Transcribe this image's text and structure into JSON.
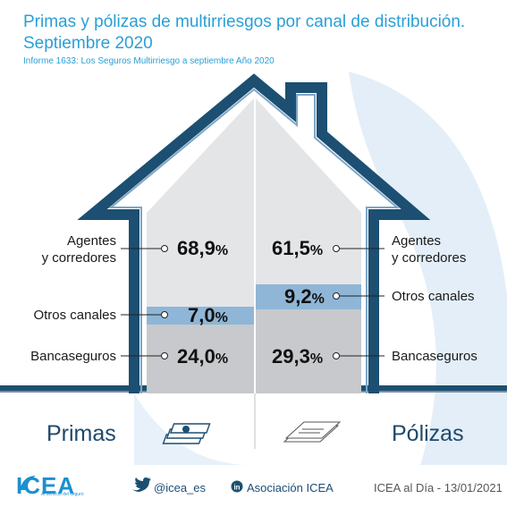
{
  "title": "Primas y pólizas de multirriesgos por canal de distribución. Septiembre 2020",
  "subtitle": "Informe 1633: Los Seguros Multirriesgo a septiembre Año 2020",
  "chart_data": {
    "type": "bar",
    "categories": [
      "Agentes y corredores",
      "Otros canales",
      "Bancaseguros"
    ],
    "series": [
      {
        "name": "Primas",
        "values": [
          68.9,
          7.0,
          24.0
        ]
      },
      {
        "name": "Pólizas",
        "values": [
          61.5,
          9.2,
          29.3
        ]
      }
    ]
  },
  "labels": {
    "left": {
      "agentes_line1": "Agentes",
      "agentes_line2": "y corredores",
      "otros": "Otros canales",
      "banca": "Bancaseguros"
    },
    "right": {
      "agentes_line1": "Agentes",
      "agentes_line2": "y corredores",
      "otros": "Otros canales",
      "banca": "Bancaseguros"
    }
  },
  "values_text": {
    "primas_agentes": "68,9",
    "primas_otros": "7,0",
    "primas_banca": "24,0",
    "polizas_agentes": "61,5",
    "polizas_otros": "9,2",
    "polizas_banca": "29,3",
    "pct": "%"
  },
  "sections": {
    "primas": "Primas",
    "polizas": "Pólizas"
  },
  "footer": {
    "logo": "ICEA",
    "logo_tag": "Al servicio del seguro",
    "twitter": "@icea_es",
    "linkedin": "Asociación ICEA",
    "date": "ICEA al Día - 13/01/2021"
  },
  "colors": {
    "accent": "#2a9fd6",
    "house_outline": "#1c4f72",
    "otros_band": "#8fb6d6",
    "banca_fill": "#c7c9cc",
    "agentes_fill": "#e4e5e7",
    "background_arc": "#e3eef8"
  },
  "icons": {
    "twitter": "twitter-icon",
    "linkedin": "linkedin-icon",
    "money": "money-stack-icon",
    "paper": "document-stack-icon"
  }
}
